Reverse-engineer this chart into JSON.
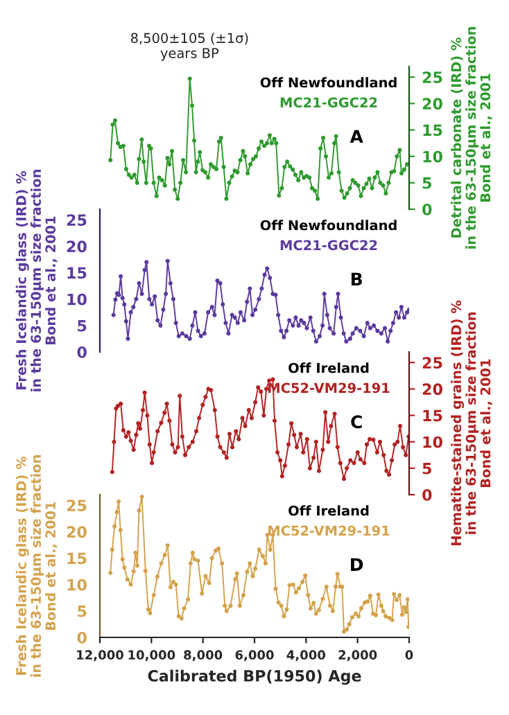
{
  "chart_data": [
    {
      "type": "line",
      "y2label": "Detrital carbonate (IRD) %\nin the 63-150μm size fraction\nBond et al., 2001",
      "xlim": [
        12000,
        0
      ],
      "y2lim": [
        0,
        27
      ],
      "y2ticks": [
        0,
        5,
        10,
        15,
        20,
        25
      ],
      "tick_labels": "y",
      "marker": "circle",
      "line_style": "solid",
      "annotations": [
        "8,500±105 (±1σ)\nyears BP",
        "Off Newfoundland",
        "MC21-GGC22",
        "A"
      ],
      "series": [
        {
          "color": "#2e9a2e",
          "axis": "y2",
          "x": [
            11590,
            11500,
            11410,
            11300,
            11200,
            11090,
            10980,
            10875,
            10770,
            10660,
            10555,
            10480,
            10375,
            10300,
            10200,
            10090,
            10020,
            9910,
            9800,
            9700,
            9590,
            9480,
            9375,
            9300,
            9200,
            9090,
            8980,
            8875,
            8770,
            8660,
            8510,
            8420,
            8340,
            8270,
            8200,
            8120,
            8015,
            7910,
            7800,
            7695,
            7590,
            7480,
            7375,
            7300,
            7195,
            7090,
            6980,
            6870,
            6765,
            6660,
            6550,
            6445,
            6370,
            6265,
            6160,
            6050,
            5945,
            5835,
            5730,
            5620,
            5515,
            5410,
            5335,
            5230,
            5160,
            5050,
            4940,
            4835,
            4730,
            4620,
            4515,
            4410,
            4300,
            4190,
            4085,
            3980,
            3870,
            3765,
            3655,
            3550,
            3440,
            3335,
            3230,
            3120,
            3015,
            2905,
            2835,
            2727,
            2620,
            2510,
            2405,
            2300,
            2190,
            2085,
            1976,
            1870,
            1760,
            1655,
            1550,
            1440,
            1333,
            1226,
            1120,
            1010,
            904,
            797,
            690,
            583,
            475,
            368,
            297,
            190,
            82
          ],
          "values": [
            9.3,
            16,
            16.8,
            12.5,
            11.8,
            12,
            7.6,
            6.5,
            6,
            6.5,
            5,
            9.5,
            13.2,
            9,
            5,
            12,
            11.5,
            5,
            2.5,
            6,
            5.5,
            4.5,
            9.7,
            8.5,
            11,
            3.7,
            2,
            5,
            9.3,
            7,
            24.7,
            19.6,
            13,
            7,
            9,
            10.8,
            7.4,
            7,
            6,
            8.5,
            8,
            7.6,
            12.8,
            13.5,
            8,
            2,
            5,
            6.2,
            7.3,
            7,
            9.3,
            11,
            10,
            6.8,
            8.5,
            9.5,
            10,
            11.5,
            12.8,
            12,
            12.5,
            14,
            12.5,
            13.3,
            12.5,
            2.6,
            4,
            8,
            9,
            8.1,
            7.5,
            6.5,
            5.5,
            7,
            6,
            6.3,
            6,
            4,
            3.5,
            2,
            11.5,
            13.5,
            10,
            6,
            6.8,
            12.5,
            13.8,
            7,
            3.5,
            2.2,
            3,
            4,
            5.5,
            5,
            4.5,
            2.5,
            4,
            4.8,
            5.8,
            4,
            6,
            7,
            5,
            4.5,
            3,
            5,
            7,
            7.2,
            10,
            11.2,
            6.8,
            7.5,
            8.5
          ]
        }
      ]
    },
    {
      "type": "line",
      "ylabel": "Fresh Icelandic glass (IRD) %\nin the 63-150μm size fraction\nBond et al., 2001",
      "xlim": [
        12000,
        0
      ],
      "ylim": [
        0,
        27
      ],
      "yticks": [
        0,
        5,
        10,
        15,
        20,
        25
      ],
      "tick_labels": "y",
      "marker": "circle",
      "line_style": "solid",
      "annotations": [
        "Off Newfoundland",
        "MC21-GGC22",
        "B"
      ],
      "series": [
        {
          "color": "#5b3a9e",
          "x": [
            11470,
            11400,
            11330,
            11260,
            11190,
            11120,
            11050,
            10980,
            10910,
            10800,
            10700,
            10590,
            10480,
            10370,
            10260,
            10190,
            10080,
            9980,
            9870,
            9760,
            9650,
            9540,
            9440,
            9370,
            9260,
            9150,
            9050,
            8940,
            8800,
            8650,
            8510,
            8410,
            8300,
            8190,
            8080,
            7940,
            7800,
            7650,
            7550,
            7440,
            7330,
            7230,
            7120,
            7010,
            6870,
            6760,
            6650,
            6540,
            6400,
            6290,
            6180,
            6080,
            5970,
            5830,
            5720,
            5610,
            5510,
            5400,
            5290,
            5180,
            5080,
            4970,
            4860,
            4760,
            4650,
            4510,
            4400,
            4290,
            4190,
            4080,
            3970,
            3830,
            3720,
            3610,
            3470,
            3360,
            3290,
            3180,
            3080,
            2930,
            2830,
            2760,
            2650,
            2540,
            2440,
            2290,
            2190,
            2050,
            1900,
            1760,
            1620,
            1510,
            1370,
            1230,
            1080,
            940,
            830,
            720,
            620,
            510,
            400,
            300,
            190,
            80,
            0
          ],
          "values": [
            7,
            9.9,
            11.1,
            10.8,
            14.3,
            10.2,
            9,
            5.8,
            2.5,
            7.5,
            8.5,
            10,
            13,
            11,
            15.5,
            17,
            10,
            9,
            10.5,
            6,
            5,
            8,
            11,
            17.2,
            13,
            10,
            5.5,
            3,
            3.5,
            3,
            2.5,
            5,
            7.5,
            4,
            3,
            3.5,
            7.5,
            8.5,
            7,
            13.5,
            13,
            9,
            5.5,
            3.5,
            7,
            6.5,
            5.5,
            7.5,
            6,
            9.5,
            12,
            7,
            8,
            10,
            12,
            14.6,
            15.8,
            14,
            11,
            10.8,
            7,
            4,
            2.8,
            4,
            6,
            5,
            6.5,
            5,
            6,
            5.5,
            4.5,
            6.5,
            4,
            2,
            3,
            5,
            11,
            7,
            4.5,
            3.5,
            8.5,
            11,
            6.5,
            3.5,
            2,
            2.5,
            3.5,
            4.5,
            4,
            3,
            5.5,
            4.5,
            5,
            4,
            3.5,
            4.5,
            2,
            4,
            5.5,
            7.5,
            6.5,
            8.5,
            6.5,
            7.5,
            8
          ]
        }
      ]
    },
    {
      "type": "line",
      "y2label": "Hematite-stained grains (IRD) %\nin the 63-150μm size fraction\nBond et al., 2001",
      "xlim": [
        12000,
        0
      ],
      "y2lim": [
        0,
        27
      ],
      "y2ticks": [
        0,
        5,
        10,
        15,
        20,
        25
      ],
      "tick_labels": "y",
      "marker": "circle",
      "line_style": "solid",
      "annotations": [
        "Off Ireland",
        "MC52-VM29-191",
        "C"
      ],
      "series": [
        {
          "color": "#b22222",
          "axis": "y2",
          "x": [
            11520,
            11450,
            11370,
            11300,
            11190,
            11090,
            10980,
            10890,
            10800,
            10690,
            10590,
            10510,
            10440,
            10330,
            10260,
            10160,
            10070,
            9980,
            9910,
            9760,
            9620,
            9490,
            9400,
            9300,
            9190,
            9080,
            8970,
            8900,
            8800,
            8690,
            8550,
            8400,
            8260,
            8150,
            8010,
            7900,
            7790,
            7690,
            7540,
            7440,
            7330,
            7190,
            7080,
            6970,
            6860,
            6720,
            6610,
            6470,
            6360,
            6220,
            6110,
            5970,
            5860,
            5750,
            5640,
            5540,
            5430,
            5290,
            5220,
            5110,
            5000,
            4930,
            4820,
            4680,
            4570,
            4460,
            4360,
            4210,
            4110,
            3960,
            3850,
            3710,
            3610,
            3500,
            3350,
            3250,
            3140,
            3030,
            2890,
            2780,
            2670,
            2530,
            2420,
            2280,
            2140,
            2000,
            1890,
            1740,
            1640,
            1530,
            1390,
            1240,
            1130,
            990,
            880,
            780,
            670,
            560,
            450,
            350,
            240,
            130,
            20
          ],
          "values": [
            4.3,
            10,
            16.3,
            16.8,
            17.2,
            12.2,
            11,
            11.8,
            10.2,
            8.5,
            11.3,
            13.5,
            12.5,
            16,
            19.3,
            15,
            9.5,
            6,
            8,
            12,
            13.6,
            15.5,
            17.2,
            14,
            9.5,
            8,
            9,
            18.7,
            11,
            7.5,
            9,
            10,
            12,
            14.5,
            17,
            18.5,
            20,
            19.8,
            16,
            11,
            9,
            8,
            7,
            11.5,
            9,
            12,
            10.5,
            14.5,
            13,
            16,
            14.5,
            17.5,
            20.3,
            19.5,
            15,
            20,
            21.6,
            21.8,
            14,
            8,
            6.5,
            3.5,
            5.5,
            9.5,
            13.5,
            11.3,
            9,
            11.5,
            8,
            10.5,
            5,
            7,
            10,
            4.5,
            8.5,
            15.6,
            10,
            13,
            15.3,
            9,
            6,
            3,
            5,
            6.5,
            6,
            8,
            6.7,
            6,
            9.5,
            10.5,
            10.4,
            8,
            10,
            7.5,
            4.5,
            3.8,
            6.5,
            9.5,
            10,
            13,
            9,
            7.5,
            11
          ]
        }
      ]
    },
    {
      "type": "line",
      "ylabel": "Fresh Icelandic glass (IRD) %\nin the 63-150μm size fraction\nBond et al., 2001",
      "xlabel": "Calibrated BP(1950) Age",
      "xlim": [
        12000,
        0
      ],
      "xticks": [
        {
          "value": 12000,
          "label": "12,000"
        },
        {
          "value": 10000,
          "label": "10,000"
        },
        {
          "value": 8000,
          "label": "8,000"
        },
        {
          "value": 6000,
          "label": "6,000"
        },
        {
          "value": 4000,
          "label": "4,000"
        },
        {
          "value": 2000,
          "label": "2,000"
        },
        0
      ],
      "ylim": [
        0,
        27
      ],
      "yticks": [
        0,
        5,
        10,
        15,
        20,
        25
      ],
      "marker": "circle",
      "line_style": "solid",
      "annotations": [
        "Off Ireland",
        "MC52-VM29-191",
        "D"
      ],
      "series": [
        {
          "color": "#d4a24c",
          "x": [
            11590,
            11520,
            11430,
            11340,
            11270,
            11200,
            11120,
            11050,
            10930,
            10800,
            10690,
            10620,
            10550,
            10480,
            10370,
            10230,
            10120,
            10050,
            9910,
            9770,
            9620,
            9480,
            9370,
            9260,
            9150,
            9050,
            8940,
            8830,
            8730,
            8580,
            8480,
            8400,
            8330,
            8190,
            8040,
            7900,
            7760,
            7650,
            7510,
            7400,
            7260,
            7150,
            7080,
            6930,
            6750,
            6680,
            6570,
            6430,
            6290,
            6180,
            6070,
            5970,
            5820,
            5680,
            5570,
            5500,
            5390,
            5290,
            5180,
            5070,
            4960,
            4860,
            4750,
            4640,
            4500,
            4390,
            4280,
            4140,
            4030,
            3920,
            3820,
            3710,
            3610,
            3500,
            3350,
            3210,
            3070,
            2960,
            2850,
            2780,
            2670,
            2600,
            2530,
            2420,
            2320,
            2210,
            2070,
            1960,
            1860,
            1720,
            1610,
            1510,
            1400,
            1290,
            1190,
            1080,
            1010,
            910,
            770,
            660,
            590,
            480,
            370,
            270,
            200,
            120,
            60,
            20
          ],
          "values": [
            12.2,
            16.6,
            21,
            23.7,
            25.7,
            20.3,
            14.8,
            13.2,
            11,
            10,
            12.5,
            16,
            13.6,
            24,
            26.6,
            12.6,
            5.3,
            4.6,
            8,
            11.5,
            14,
            15.6,
            17.4,
            9.5,
            10.5,
            10,
            4,
            3.6,
            5.5,
            7.2,
            14,
            16,
            14.8,
            14.5,
            8.3,
            11.6,
            10.3,
            15,
            16.4,
            16.8,
            14,
            6,
            5,
            6,
            11,
            12.1,
            6,
            8,
            12.4,
            14,
            11.6,
            13,
            16.6,
            15.4,
            14,
            19.4,
            16.6,
            19.4,
            9.2,
            6.6,
            6,
            4,
            5.3,
            9.9,
            10,
            8.5,
            9.3,
            10.5,
            11.7,
            8,
            5.5,
            6.5,
            4.5,
            5.2,
            7.3,
            9.6,
            6,
            5,
            9.6,
            12,
            9.6,
            9.6,
            1.1,
            1.5,
            2.5,
            3.8,
            4.5,
            4,
            5.5,
            6.6,
            6.8,
            7.9,
            4.5,
            4.2,
            8.1,
            6,
            5,
            4,
            3.7,
            3.3,
            8.2,
            7.1,
            8,
            4.3,
            5.7,
            4.8,
            7.2,
            2
          ]
        }
      ]
    }
  ]
}
